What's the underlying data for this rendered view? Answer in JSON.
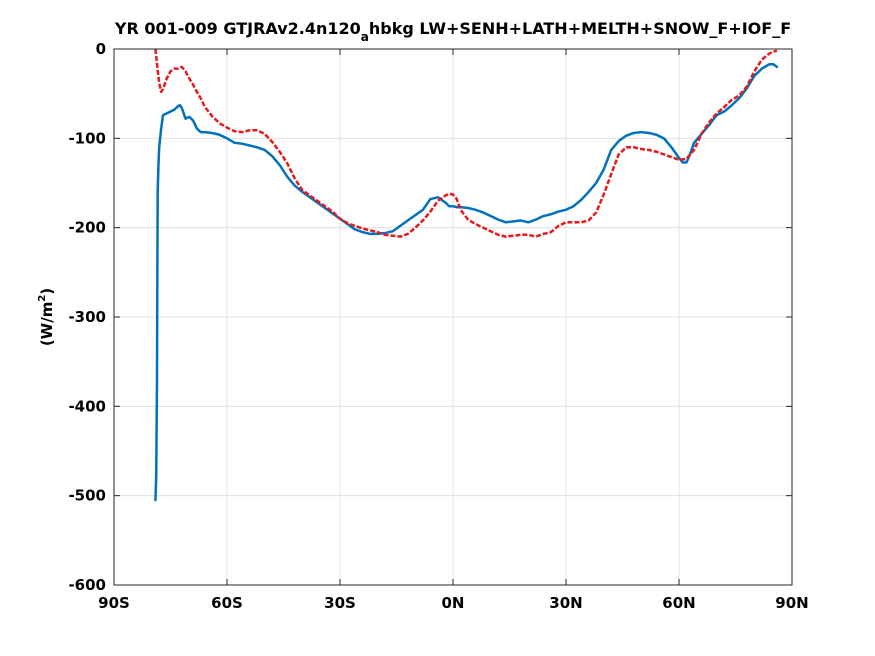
{
  "chart_data": {
    "type": "line",
    "title": {
      "part1": "YR 001-009 GTJRAv2.4n120",
      "subscript": "a",
      "part2": "hbkg LW+SENH+LATH+MELTH+SNOW_F+IOF_F"
    },
    "xlabel": "",
    "ylabel": {
      "main": "(W/m",
      "superscript": "2",
      "close": ")"
    },
    "xlim": [
      -90,
      90
    ],
    "ylim": [
      -600,
      0
    ],
    "x_ticks": [
      {
        "value": -90,
        "label": "90S"
      },
      {
        "value": -60,
        "label": "60S"
      },
      {
        "value": -30,
        "label": "30S"
      },
      {
        "value": 0,
        "label": "0N"
      },
      {
        "value": 30,
        "label": "30N"
      },
      {
        "value": 60,
        "label": "60N"
      },
      {
        "value": 90,
        "label": "90N"
      }
    ],
    "y_ticks": [
      {
        "value": 0,
        "label": "0"
      },
      {
        "value": -100,
        "label": "-100"
      },
      {
        "value": -200,
        "label": "-200"
      },
      {
        "value": -300,
        "label": "-300"
      },
      {
        "value": -400,
        "label": "-400"
      },
      {
        "value": -500,
        "label": "-500"
      },
      {
        "value": -600,
        "label": "-600"
      }
    ],
    "grid": true,
    "series": [
      {
        "color": "#0072bd",
        "line_style": "solid",
        "x": [
          -79,
          -78.8,
          -78.6,
          -78.5,
          -78.4,
          -78.2,
          -78,
          -77.5,
          -77,
          -76,
          -75,
          -74,
          -73,
          -72.5,
          -72,
          -71,
          -70,
          -69,
          -68,
          -67,
          -66,
          -64,
          -62,
          -60,
          -58,
          -56,
          -54,
          -52,
          -50,
          -48,
          -46,
          -44,
          -42,
          -40,
          -38,
          -36,
          -34,
          -32,
          -30,
          -28,
          -26,
          -24,
          -22,
          -20,
          -18,
          -16,
          -14,
          -12,
          -10,
          -8,
          -6,
          -4,
          -2,
          -1,
          0,
          1,
          2,
          4,
          6,
          8,
          10,
          12,
          14,
          16,
          18,
          20,
          22,
          24,
          26,
          28,
          30,
          32,
          34,
          36,
          38,
          40,
          42,
          44,
          46,
          48,
          50,
          52,
          54,
          56,
          58,
          60,
          61,
          62,
          63,
          64,
          66,
          68,
          70,
          72,
          74,
          76,
          78,
          80,
          82,
          84,
          85,
          86
        ],
        "y": [
          -505,
          -480,
          -380,
          -260,
          -160,
          -130,
          -110,
          -90,
          -74,
          -72,
          -70,
          -68,
          -64,
          -63,
          -66,
          -78,
          -76,
          -80,
          -89,
          -93,
          -93,
          -94,
          -96,
          -100,
          -105,
          -106,
          -108,
          -110,
          -113,
          -120,
          -130,
          -143,
          -153,
          -160,
          -166,
          -172,
          -178,
          -184,
          -190,
          -196,
          -202,
          -205,
          -207,
          -207,
          -206,
          -204,
          -198,
          -192,
          -186,
          -180,
          -168,
          -166,
          -172,
          -176,
          -176,
          -177,
          -177,
          -178,
          -180,
          -183,
          -187,
          -191,
          -194,
          -193,
          -192,
          -194,
          -191,
          -187,
          -185,
          -182,
          -180,
          -176,
          -169,
          -160,
          -150,
          -135,
          -113,
          -103,
          -97,
          -94,
          -93,
          -94,
          -96,
          -100,
          -110,
          -122,
          -127,
          -127,
          -117,
          -105,
          -95,
          -85,
          -74,
          -70,
          -63,
          -55,
          -44,
          -30,
          -22,
          -17,
          -17,
          -20
        ]
      },
      {
        "color": "#e41a1c",
        "line_style": "dashed",
        "x": [
          -79,
          -78.5,
          -78,
          -77.5,
          -77,
          -76,
          -75,
          -74,
          -73,
          -72,
          -71,
          -70,
          -69,
          -68,
          -67,
          -66,
          -64,
          -62,
          -60,
          -58,
          -56,
          -54,
          -52,
          -50,
          -48,
          -46,
          -44,
          -42,
          -40,
          -38,
          -36,
          -34,
          -32,
          -30,
          -28,
          -26,
          -24,
          -22,
          -20,
          -18,
          -16,
          -14,
          -12,
          -10,
          -8,
          -6,
          -4,
          -2,
          -1,
          0,
          1,
          2,
          4,
          6,
          8,
          10,
          12,
          14,
          16,
          18,
          20,
          22,
          24,
          26,
          28,
          30,
          32,
          34,
          36,
          38,
          40,
          42,
          44,
          46,
          48,
          50,
          52,
          54,
          56,
          58,
          60,
          62,
          64,
          66,
          68,
          70,
          72,
          74,
          76,
          78,
          80,
          82,
          84,
          85,
          86
        ],
        "y": [
          0,
          -20,
          -38,
          -48,
          -45,
          -33,
          -25,
          -22,
          -22,
          -20,
          -25,
          -33,
          -40,
          -48,
          -55,
          -64,
          -75,
          -83,
          -88,
          -92,
          -93,
          -91,
          -91,
          -95,
          -104,
          -115,
          -128,
          -145,
          -158,
          -164,
          -170,
          -176,
          -182,
          -190,
          -195,
          -198,
          -201,
          -203,
          -205,
          -208,
          -209,
          -210,
          -207,
          -200,
          -192,
          -182,
          -170,
          -164,
          -162,
          -163,
          -168,
          -180,
          -191,
          -196,
          -200,
          -204,
          -208,
          -210,
          -209,
          -208,
          -208,
          -210,
          -207,
          -205,
          -198,
          -194,
          -194,
          -194,
          -192,
          -183,
          -163,
          -140,
          -118,
          -110,
          -110,
          -112,
          -113,
          -115,
          -118,
          -121,
          -124,
          -123,
          -113,
          -95,
          -82,
          -72,
          -65,
          -57,
          -52,
          -42,
          -25,
          -12,
          -5,
          -3,
          -2
        ]
      }
    ]
  }
}
